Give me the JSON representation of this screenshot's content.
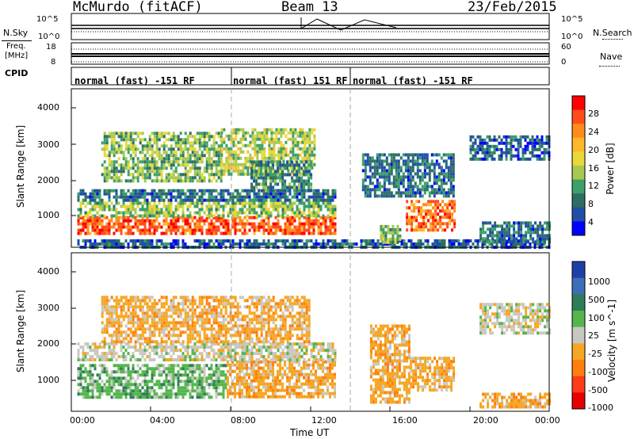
{
  "header": {
    "station": "McMurdo (fitACF)",
    "beam": "Beam 13",
    "date": "23/Feb/2015"
  },
  "noise_panel": {
    "left_label": "N.Sky",
    "right_label": "N.Search",
    "left_ticks": [
      "10^5",
      "10^0"
    ],
    "right_ticks": [
      "10^5",
      "10^0"
    ]
  },
  "freq_panel": {
    "left_label_line1": "Freq.",
    "left_label_line2": "[MHz]",
    "right_label": "Nave",
    "left_ticks": [
      "18",
      "8"
    ],
    "right_ticks": [
      "60",
      "0"
    ]
  },
  "cpid": {
    "label": "CPID",
    "segments": [
      {
        "text": "normal (fast) -151 RF",
        "start_hr": 0.0
      },
      {
        "text": "normal (fast) 151 RF",
        "start_hr": 8.0
      },
      {
        "text": "normal (fast) -151 RF",
        "start_hr": 14.0
      }
    ]
  },
  "axes": {
    "x_label": "Time UT",
    "x_ticks": [
      "00:00",
      "04:00",
      "08:00",
      "12:00",
      "16:00",
      "20:00",
      "00:00"
    ],
    "y_label": "Slant Range [km]",
    "y_ticks": [
      "1000",
      "2000",
      "3000",
      "4000"
    ]
  },
  "colorbars": {
    "power": {
      "label": "Power [dB]",
      "ticks": [
        "28",
        "24",
        "20",
        "16",
        "12",
        "8",
        "4"
      ],
      "colors": [
        "#ff0000",
        "#ff4d1a",
        "#ff8c1a",
        "#ffb829",
        "#e8d83a",
        "#a8c850",
        "#3d9f6a",
        "#2e6e63",
        "#1f4fa8",
        "#0000ff"
      ]
    },
    "velocity": {
      "label": "Velocity [m s^-1]",
      "ticks": [
        "1000",
        "500",
        "100",
        "25",
        "-25",
        "-100",
        "-500",
        "-1000"
      ],
      "colors": [
        "#1f3fa8",
        "#3b6fb8",
        "#2e7d5a",
        "#55b64d",
        "#c8c8c0",
        "#f5a623",
        "#ff7f0e",
        "#ff3b1a",
        "#e60000"
      ]
    }
  },
  "chart_data": [
    {
      "type": "heatmap",
      "name": "Power",
      "xlabel": "Time UT",
      "ylabel": "Slant Range [km]",
      "xlim": [
        0,
        24
      ],
      "ylim": [
        180,
        4600
      ],
      "value_range_db": [
        0,
        30
      ],
      "regions": [
        {
          "t0": 0.3,
          "t1": 13.2,
          "r0": 550,
          "r1": 1050,
          "db": 26
        },
        {
          "t0": 0.3,
          "t1": 13.2,
          "r0": 1050,
          "r1": 1450,
          "db": 13
        },
        {
          "t0": 0.3,
          "t1": 13.2,
          "r0": 1450,
          "r1": 1800,
          "db": 6
        },
        {
          "t0": 0.3,
          "t1": 24.0,
          "r0": 180,
          "r1": 400,
          "db": 5
        },
        {
          "t0": 1.5,
          "t1": 7.5,
          "r0": 2000,
          "r1": 3400,
          "db": 12
        },
        {
          "t0": 7.5,
          "t1": 12.2,
          "r0": 2200,
          "r1": 3500,
          "db": 14
        },
        {
          "t0": 9.0,
          "t1": 12.0,
          "r0": 1800,
          "r1": 2600,
          "db": 8
        },
        {
          "t0": 16.8,
          "t1": 19.2,
          "r0": 700,
          "r1": 1500,
          "db": 25
        },
        {
          "t0": 14.6,
          "t1": 19.2,
          "r0": 1600,
          "r1": 2800,
          "db": 6
        },
        {
          "t0": 15.5,
          "t1": 16.5,
          "r0": 350,
          "r1": 800,
          "db": 12
        },
        {
          "t0": 20.0,
          "t1": 24.0,
          "r0": 2600,
          "r1": 3300,
          "db": 5
        },
        {
          "t0": 20.5,
          "t1": 24.0,
          "r0": 300,
          "r1": 900,
          "db": 6
        }
      ]
    },
    {
      "type": "heatmap",
      "name": "Velocity",
      "xlabel": "Time UT",
      "ylabel": "Slant Range [km]",
      "xlim": [
        0,
        24
      ],
      "ylim": [
        180,
        4600
      ],
      "value_range_ms": [
        -1200,
        1200
      ],
      "regions": [
        {
          "t0": 0.3,
          "t1": 7.8,
          "r0": 550,
          "r1": 1500,
          "v": 300
        },
        {
          "t0": 7.8,
          "t1": 13.2,
          "r0": 550,
          "r1": 1600,
          "v": -300
        },
        {
          "t0": 0.3,
          "t1": 13.2,
          "r0": 1600,
          "r1": 2100,
          "v": 0
        },
        {
          "t0": 1.5,
          "t1": 12.0,
          "r0": 2100,
          "r1": 3400,
          "v": -300
        },
        {
          "t0": 15.0,
          "t1": 17.0,
          "r0": 400,
          "r1": 2600,
          "v": -300
        },
        {
          "t0": 17.0,
          "t1": 19.2,
          "r0": 800,
          "r1": 1700,
          "v": -300
        },
        {
          "t0": 20.5,
          "t1": 24.0,
          "r0": 2400,
          "r1": 3200,
          "v": 0
        },
        {
          "t0": 20.5,
          "t1": 24.0,
          "r0": 300,
          "r1": 700,
          "v": -300
        }
      ]
    }
  ]
}
